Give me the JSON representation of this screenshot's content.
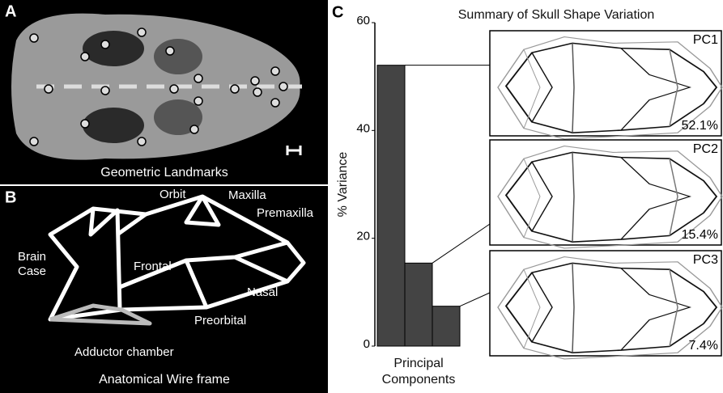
{
  "panels": {
    "a": {
      "letter": "A",
      "caption": "Geometric Landmarks"
    },
    "b": {
      "letter": "B",
      "caption": "Anatomical Wire frame",
      "labels": [
        "Orbit",
        "Maxilla",
        "Premaxilla",
        "Brain",
        "Case",
        "Frontal",
        "Nasal",
        "Preorbital",
        "Adductor chamber"
      ]
    },
    "c": {
      "letter": "C"
    }
  },
  "chart_data": {
    "type": "bar",
    "title": "Summary of Skull Shape Variation",
    "y_label": "% Variance",
    "x_label": [
      "Principal",
      "Components"
    ],
    "categories": [
      "PC1",
      "PC2",
      "PC3"
    ],
    "values": [
      52.1,
      15.4,
      7.4
    ],
    "value_labels": [
      "52.1%",
      "15.4%",
      "7.4%"
    ],
    "color": "#444444",
    "ylim": [
      0,
      60
    ],
    "yticks": [
      0,
      20,
      40,
      60
    ]
  }
}
